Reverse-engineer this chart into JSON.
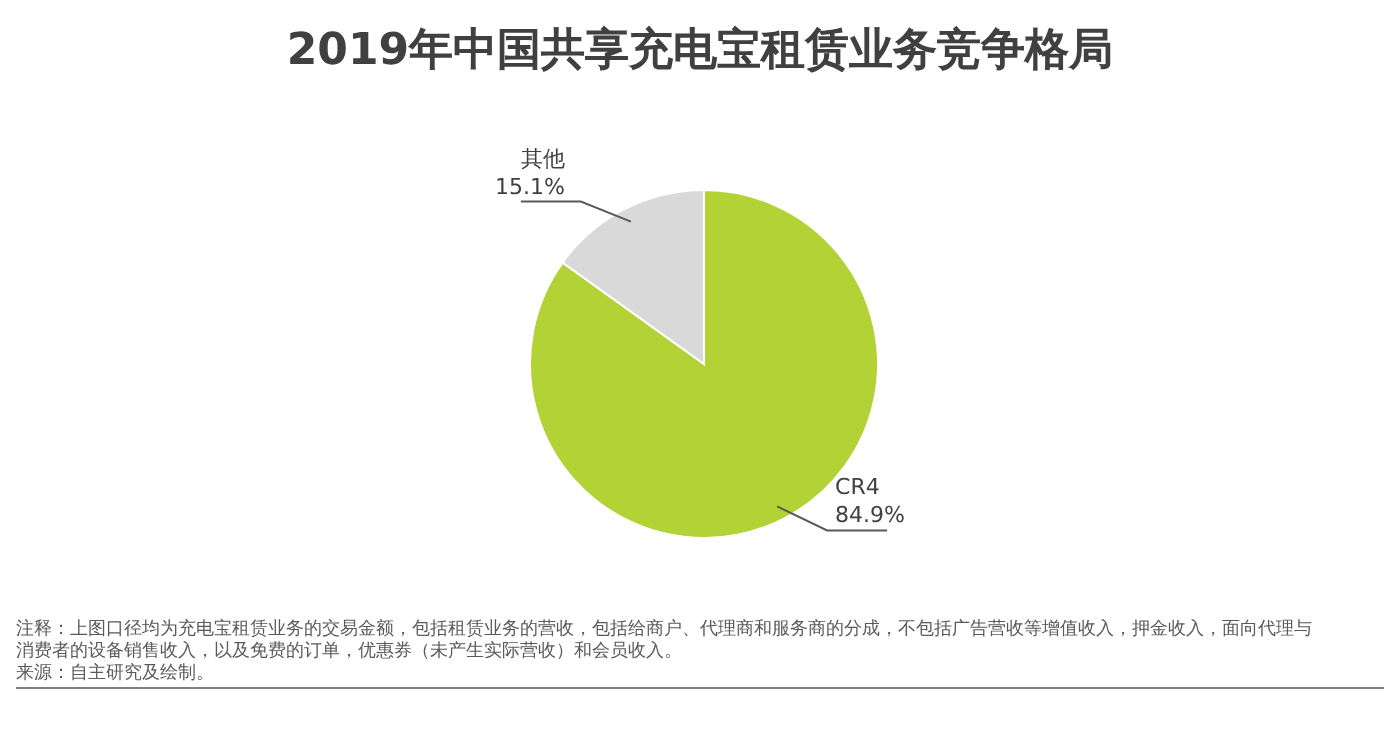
{
  "chart_data": {
    "type": "pie",
    "title": "2019年中国共享充电宝租赁业务竞争格局",
    "categories": [
      "CR4",
      "其他"
    ],
    "values": [
      84.9,
      15.1
    ],
    "colors": [
      "#b2d235",
      "#d9d9d9"
    ],
    "value_labels": [
      "84.9%",
      "15.1%"
    ],
    "annotations": [
      "注释：上图口径均为充电宝租赁业务的交易金额，包括租赁业务的营收，包括给商户、代理商和服务商的分成，不包括广告营收等增值收入，押金收入，面向代理与消费者的设备销售收入，以及免费的订单，优惠券（未产生实际营收）和会员收入。",
      "来源：自主研究及绘制。"
    ]
  }
}
